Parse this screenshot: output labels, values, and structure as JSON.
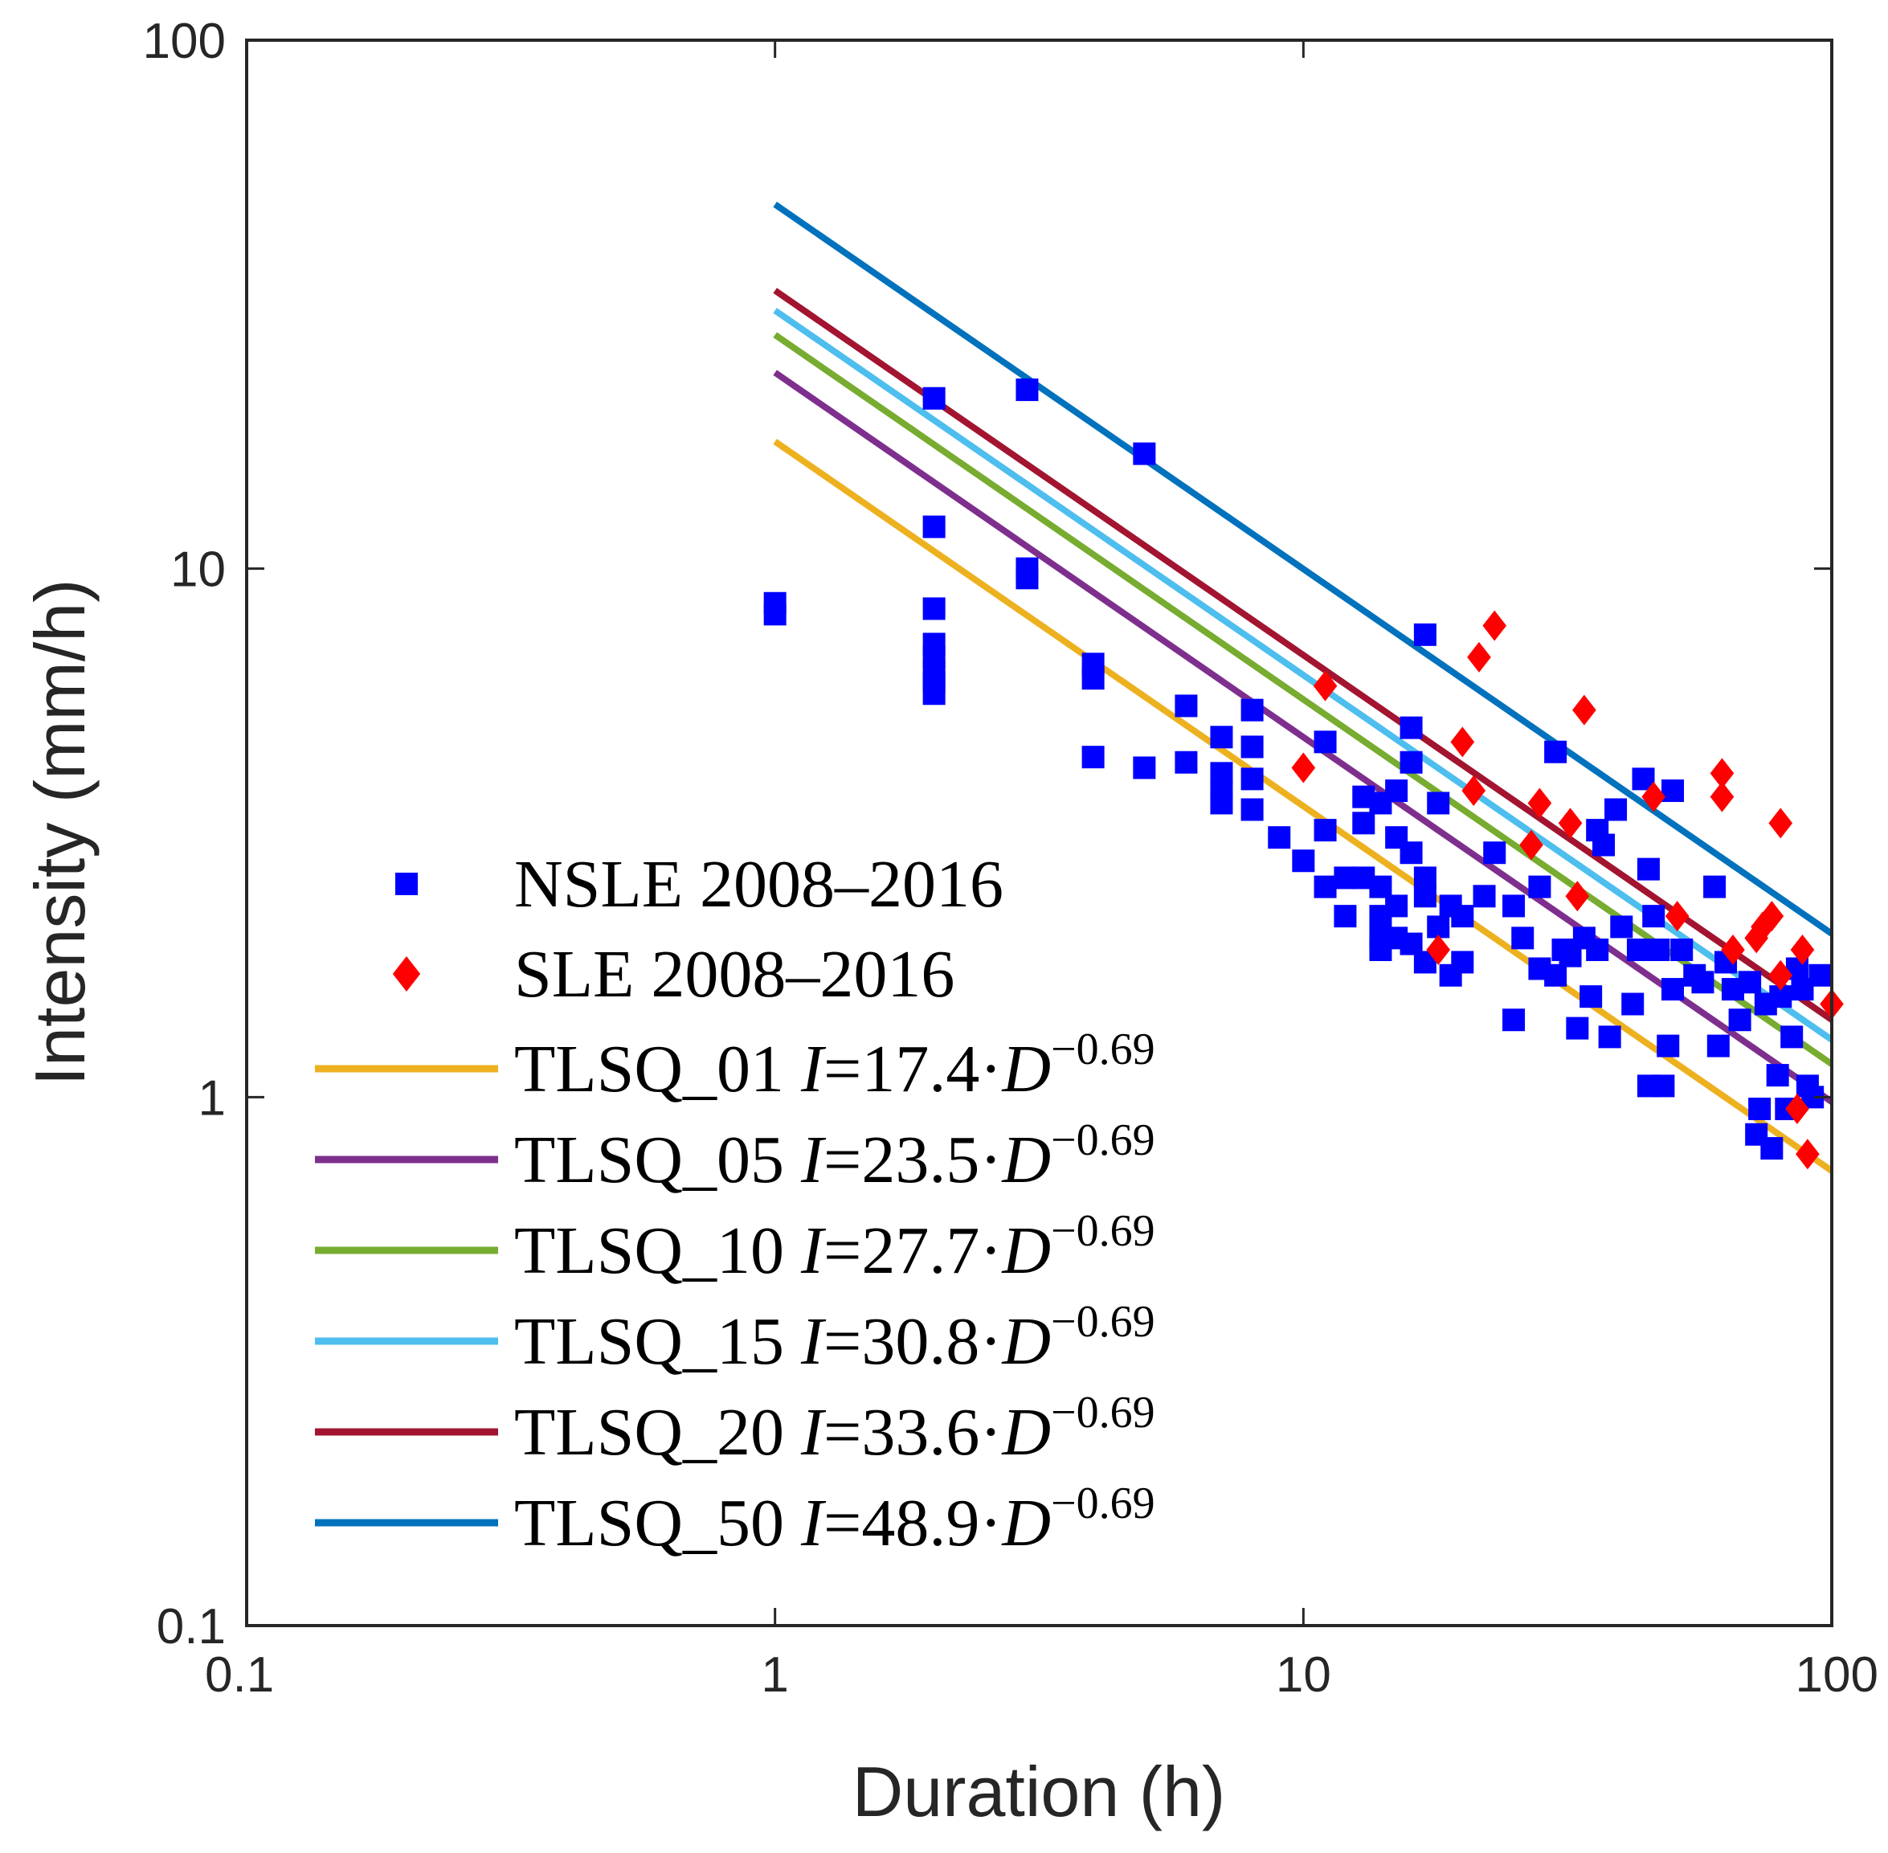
{
  "chart_data": {
    "type": "scatter",
    "title": "",
    "xlabel": "Duration (h)",
    "ylabel": "Intensity (mm/h)",
    "xscale": "log",
    "yscale": "log",
    "xlim": [
      0.1,
      100
    ],
    "ylim": [
      0.1,
      100
    ],
    "xticks": [
      0.1,
      1,
      10,
      100
    ],
    "yticks": [
      0.1,
      1,
      10,
      100
    ],
    "xtick_labels": [
      "0.1",
      "1",
      "10",
      "100"
    ],
    "ytick_labels": [
      "0.1",
      "1",
      "10",
      "100"
    ],
    "legend_position": "lower-left",
    "colors": {
      "nsle": "#0000ff",
      "sle": "#ff0000",
      "axis": "#262626"
    },
    "scatter_series": [
      {
        "name": "NSLE 2008–2016",
        "marker": "square",
        "color": "#0000ff",
        "points": [
          [
            1,
            8.2
          ],
          [
            1,
            8.6
          ],
          [
            2,
            21
          ],
          [
            2,
            12
          ],
          [
            2,
            8.4
          ],
          [
            2,
            7.2
          ],
          [
            2,
            6.8
          ],
          [
            2,
            6.4
          ],
          [
            2,
            6.1
          ],
          [
            2,
            5.8
          ],
          [
            3,
            21.8
          ],
          [
            3,
            9.6
          ],
          [
            3,
            10
          ],
          [
            4,
            6.2
          ],
          [
            4,
            6.6
          ],
          [
            4,
            4.4
          ],
          [
            5,
            16.5
          ],
          [
            5,
            4.2
          ],
          [
            6,
            5.5
          ],
          [
            6,
            4.3
          ],
          [
            7,
            4.8
          ],
          [
            7,
            4.1
          ],
          [
            7,
            3.8
          ],
          [
            7,
            3.6
          ],
          [
            8,
            5.4
          ],
          [
            8,
            4.6
          ],
          [
            8,
            4.0
          ],
          [
            8,
            3.5
          ],
          [
            9,
            3.1
          ],
          [
            10,
            2.8
          ],
          [
            11,
            4.7
          ],
          [
            11,
            3.2
          ],
          [
            11,
            2.5
          ],
          [
            12,
            2.2
          ],
          [
            12,
            2.6
          ],
          [
            13,
            3.7
          ],
          [
            13,
            3.3
          ],
          [
            13,
            2.6
          ],
          [
            14,
            3.6
          ],
          [
            14,
            2.5
          ],
          [
            14,
            2.2
          ],
          [
            14,
            2.0
          ],
          [
            14,
            1.9
          ],
          [
            15,
            3.8
          ],
          [
            15,
            3.1
          ],
          [
            15,
            2.3
          ],
          [
            15,
            2.0
          ],
          [
            16,
            5.0
          ],
          [
            16,
            4.3
          ],
          [
            16,
            2.9
          ],
          [
            16,
            1.95
          ],
          [
            17,
            7.5
          ],
          [
            17,
            2.6
          ],
          [
            17,
            2.4
          ],
          [
            17,
            1.8
          ],
          [
            18,
            3.6
          ],
          [
            18,
            2.1
          ],
          [
            19,
            1.7
          ],
          [
            19,
            2.3
          ],
          [
            20,
            1.8
          ],
          [
            20,
            2.2
          ],
          [
            22,
            2.4
          ],
          [
            23,
            2.9
          ],
          [
            25,
            1.4
          ],
          [
            25,
            2.3
          ],
          [
            26,
            2.0
          ],
          [
            28,
            1.75
          ],
          [
            28,
            2.5
          ],
          [
            30,
            4.5
          ],
          [
            30,
            1.7
          ],
          [
            31,
            1.9
          ],
          [
            32,
            1.85
          ],
          [
            33,
            1.35
          ],
          [
            34,
            2.0
          ],
          [
            35,
            1.55
          ],
          [
            36,
            3.2
          ],
          [
            36,
            1.9
          ],
          [
            37,
            3.0
          ],
          [
            38,
            1.3
          ],
          [
            39,
            3.5
          ],
          [
            40,
            2.1
          ],
          [
            42,
            1.5
          ],
          [
            43,
            1.9
          ],
          [
            44,
            4.0
          ],
          [
            45,
            2.7
          ],
          [
            45,
            1.05
          ],
          [
            46,
            2.2
          ],
          [
            47,
            1.9
          ],
          [
            48,
            1.05
          ],
          [
            49,
            1.25
          ],
          [
            50,
            3.8
          ],
          [
            50,
            1.6
          ],
          [
            52,
            1.9
          ],
          [
            55,
            1.7
          ],
          [
            57,
            1.65
          ],
          [
            60,
            2.5
          ],
          [
            61,
            1.25
          ],
          [
            63,
            1.8
          ],
          [
            65,
            1.6
          ],
          [
            67,
            1.4
          ],
          [
            70,
            1.65
          ],
          [
            72,
            0.85
          ],
          [
            73,
            0.95
          ],
          [
            75,
            1.5
          ],
          [
            77,
            0.8
          ],
          [
            79,
            1.1
          ],
          [
            80,
            1.55
          ],
          [
            82,
            0.95
          ],
          [
            84,
            1.3
          ],
          [
            86,
            1.75
          ],
          [
            88,
            1.6
          ],
          [
            90,
            1.05
          ],
          [
            92,
            1.0
          ],
          [
            95,
            1.7
          ]
        ]
      },
      {
        "name": "SLE 2008–2016",
        "marker": "diamond",
        "color": "#ff0000",
        "points": [
          [
            10,
            4.2
          ],
          [
            11,
            6.0
          ],
          [
            18,
            1.9
          ],
          [
            20,
            4.7
          ],
          [
            21,
            3.8
          ],
          [
            21.5,
            6.8
          ],
          [
            23,
            7.8
          ],
          [
            27,
            3.0
          ],
          [
            28,
            3.6
          ],
          [
            32,
            3.3
          ],
          [
            33,
            2.4
          ],
          [
            34,
            5.4
          ],
          [
            46,
            3.7
          ],
          [
            51,
            2.2
          ],
          [
            62,
            4.1
          ],
          [
            62,
            3.7
          ],
          [
            65,
            1.9
          ],
          [
            72,
            2.0
          ],
          [
            74,
            2.1
          ],
          [
            77,
            2.2
          ],
          [
            80,
            3.3
          ],
          [
            80,
            1.7
          ],
          [
            86,
            0.95
          ],
          [
            88,
            1.9
          ],
          [
            90,
            0.78
          ],
          [
            100,
            1.5
          ]
        ]
      }
    ],
    "fit_series": [
      {
        "name": "TLSQ_01",
        "label_main": "TLSQ_01 ",
        "label_var": "I",
        "label_eq": "=17.4·",
        "label_d": "D",
        "label_exp": "−0.69",
        "coefficient": 17.4,
        "exponent": -0.69,
        "x_range": [
          1,
          100
        ],
        "color": "#edb120"
      },
      {
        "name": "TLSQ_05",
        "label_main": "TLSQ_05 ",
        "label_var": "I",
        "label_eq": "=23.5·",
        "label_d": "D",
        "label_exp": "−0.69",
        "coefficient": 23.5,
        "exponent": -0.69,
        "x_range": [
          1,
          100
        ],
        "color": "#7e2f8e"
      },
      {
        "name": "TLSQ_10",
        "label_main": "TLSQ_10 ",
        "label_var": "I",
        "label_eq": "=27.7·",
        "label_d": "D",
        "label_exp": "−0.69",
        "coefficient": 27.7,
        "exponent": -0.69,
        "x_range": [
          1,
          100
        ],
        "color": "#77ac30"
      },
      {
        "name": "TLSQ_15",
        "label_main": "TLSQ_15 ",
        "label_var": "I",
        "label_eq": "=30.8·",
        "label_d": "D",
        "label_exp": "−0.69",
        "coefficient": 30.8,
        "exponent": -0.69,
        "x_range": [
          1,
          100
        ],
        "color": "#4dbeee"
      },
      {
        "name": "TLSQ_20",
        "label_main": "TLSQ_20 ",
        "label_var": "I",
        "label_eq": "=33.6·",
        "label_d": "D",
        "label_exp": "−0.69",
        "coefficient": 33.6,
        "exponent": -0.69,
        "x_range": [
          1,
          100
        ],
        "color": "#a2142f"
      },
      {
        "name": "TLSQ_50",
        "label_main": "TLSQ_50 ",
        "label_var": "I",
        "label_eq": "=48.9·",
        "label_d": "D",
        "label_exp": "−0.69",
        "coefficient": 48.9,
        "exponent": -0.69,
        "x_range": [
          1,
          100
        ],
        "color": "#0072bd"
      }
    ]
  }
}
